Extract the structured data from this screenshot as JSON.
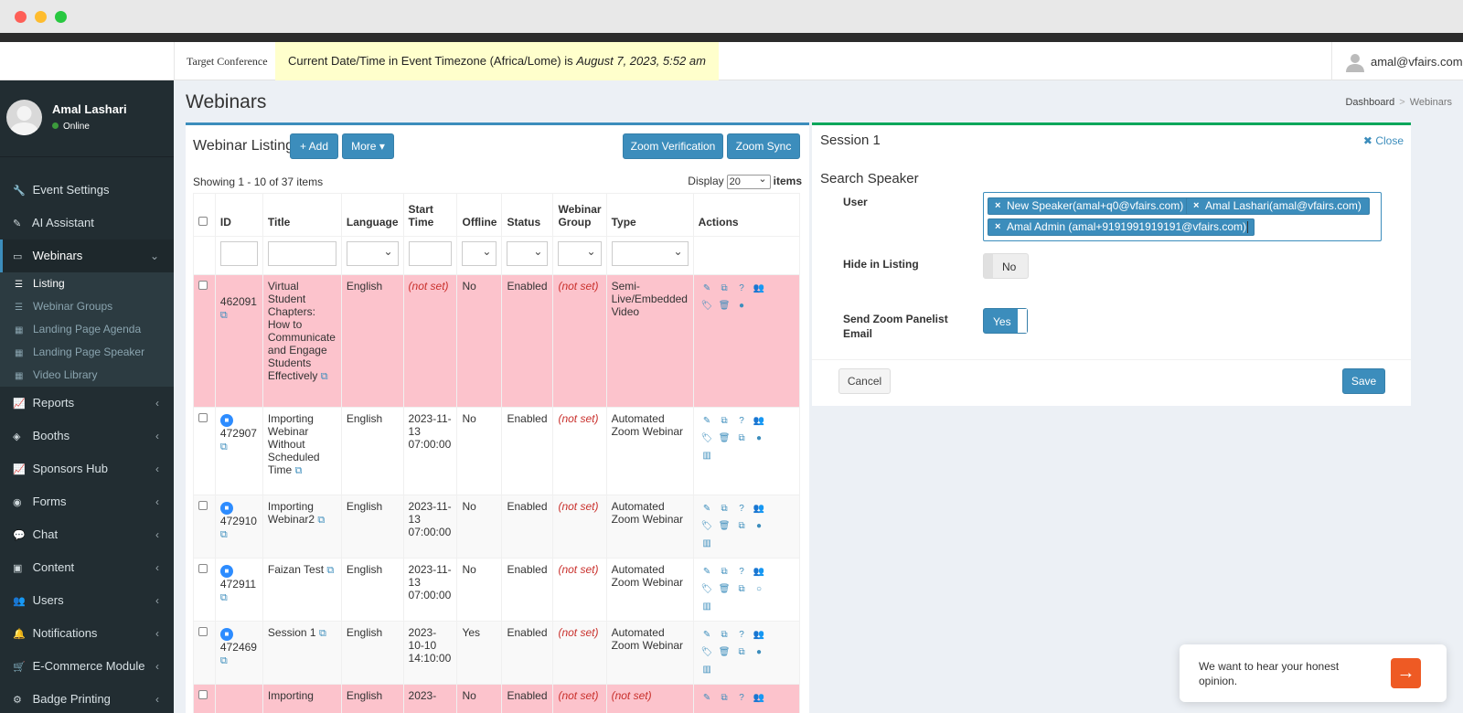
{
  "topbar": {
    "brand": "Target Conference",
    "notice_prefix": "Current Date/Time in Event Timezone (Africa/Lome) is ",
    "notice_datetime": "August 7, 2023, 5:52 am",
    "user_email": "amal@vfairs.com"
  },
  "sidebar": {
    "user_name": "Amal Lashari",
    "user_status": "Online",
    "menu": [
      {
        "label": "Event Settings",
        "icon": "wrench-icon"
      },
      {
        "label": "AI Assistant",
        "icon": "magic-wand-icon"
      },
      {
        "label": "Webinars",
        "icon": "desktop-icon"
      },
      {
        "label": "Reports",
        "icon": "line-chart-icon"
      },
      {
        "label": "Booths",
        "icon": "cube-icon"
      },
      {
        "label": "Sponsors Hub",
        "icon": "line-chart-icon"
      },
      {
        "label": "Forms",
        "icon": "dot-circle-icon"
      },
      {
        "label": "Chat",
        "icon": "comments-icon"
      },
      {
        "label": "Content",
        "icon": "image-icon"
      },
      {
        "label": "Users",
        "icon": "users-icon"
      },
      {
        "label": "Notifications",
        "icon": "bell-icon"
      },
      {
        "label": "E-Commerce Module",
        "icon": "cart-icon"
      },
      {
        "label": "Badge Printing",
        "icon": "gear-icon"
      }
    ],
    "submenu": [
      "Listing",
      "Webinar Groups",
      "Landing Page Agenda",
      "Landing Page Speaker",
      "Video Library"
    ]
  },
  "page": {
    "title": "Webinars",
    "breadcrumb": [
      "Dashboard",
      "Webinars"
    ]
  },
  "listing": {
    "heading": "Webinar Listing",
    "add_label": "+ Add",
    "more_label": "More ▾",
    "zoom_verification_label": "Zoom Verification",
    "zoom_sync_label": "Zoom Sync",
    "showing": "Showing 1 - 10 of 37 items",
    "display_label": "Display",
    "display_value": "20",
    "items_label": "items",
    "columns": [
      "ID",
      "Title",
      "Language",
      "Start Time",
      "Offline",
      "Status",
      "Webinar Group",
      "Type",
      "Actions"
    ],
    "rows": [
      {
        "id": "462091",
        "title": "Virtual Student Chapters: How to Communicate and Engage Students Effectively",
        "language": "English",
        "start": "(not set)",
        "offline": "No",
        "status": "Enabled",
        "group": "(not set)",
        "type": "Semi-Live/Embedded Video"
      },
      {
        "id": "472907",
        "title": "Importing Webinar Without Scheduled Time",
        "language": "English",
        "start": "2023-11-13 07:00:00",
        "offline": "No",
        "status": "Enabled",
        "group": "(not set)",
        "type": "Automated Zoom Webinar"
      },
      {
        "id": "472910",
        "title": "Importing Webinar2",
        "language": "English",
        "start": "2023-11-13 07:00:00",
        "offline": "No",
        "status": "Enabled",
        "group": "(not set)",
        "type": "Automated Zoom Webinar"
      },
      {
        "id": "472911",
        "title": "Faizan Test",
        "language": "English",
        "start": "2023-11-13 07:00:00",
        "offline": "No",
        "status": "Enabled",
        "group": "(not set)",
        "type": "Automated Zoom Webinar"
      },
      {
        "id": "472469",
        "title": "Session 1",
        "language": "English",
        "start": "2023-10-10 14:10:00",
        "offline": "Yes",
        "status": "Enabled",
        "group": "(not set)",
        "type": "Automated Zoom Webinar"
      },
      {
        "id": "",
        "title": "Importing",
        "language": "English",
        "start": "2023-",
        "offline": "No",
        "status": "Enabled",
        "group": "(not set)",
        "type": "(not set)"
      }
    ]
  },
  "session": {
    "title": "Session 1",
    "close_label": "Close",
    "search_heading": "Search Speaker",
    "user_label": "User",
    "speakers": [
      "New Speaker(amal+q0@vfairs.com)",
      "Amal Lashari(amal@vfairs.com)",
      "Amal Admin (amal+9191991919191@vfairs.com)"
    ],
    "hide_label": "Hide in Listing",
    "hide_value": "No",
    "send_zoom_label": "Send Zoom Panelist Email",
    "send_zoom_value": "Yes",
    "cancel_label": "Cancel",
    "save_label": "Save"
  },
  "feedback": {
    "text": "We want to hear your honest opinion."
  },
  "colors": {
    "primary": "#3c8dbc",
    "sidebar": "#222d32",
    "pink_row": "#fcc3cc",
    "success": "#00a65a"
  }
}
